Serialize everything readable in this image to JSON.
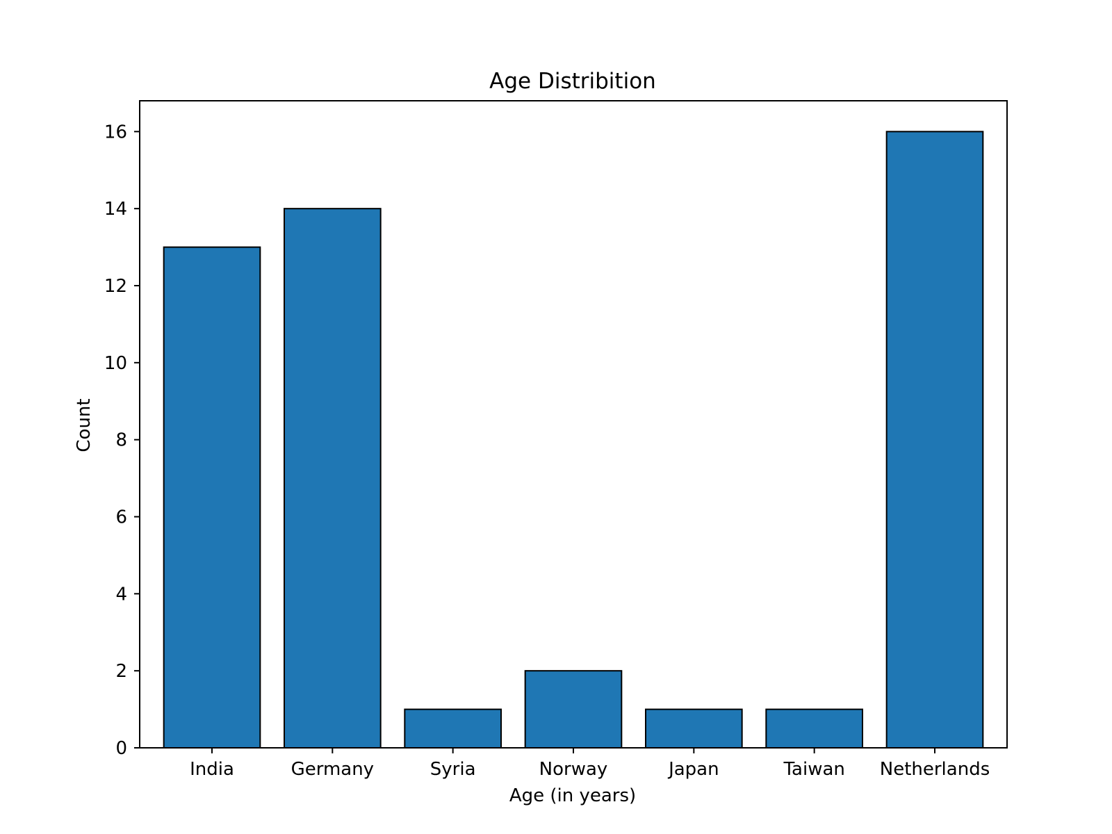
{
  "chart_data": {
    "type": "bar",
    "title": "Age Distribition",
    "xlabel": "Age (in years)",
    "ylabel": "Count",
    "categories": [
      "India",
      "Germany",
      "Syria",
      "Norway",
      "Japan",
      "Taiwan",
      "Netherlands"
    ],
    "values": [
      13,
      14,
      1,
      2,
      1,
      1,
      16
    ],
    "ylim": [
      0,
      16.8
    ],
    "yticks": [
      0,
      2,
      4,
      6,
      8,
      10,
      12,
      14,
      16
    ],
    "grid": false,
    "legend": "none",
    "bar_color": "#1f77b4",
    "edge_color": "#000000"
  }
}
